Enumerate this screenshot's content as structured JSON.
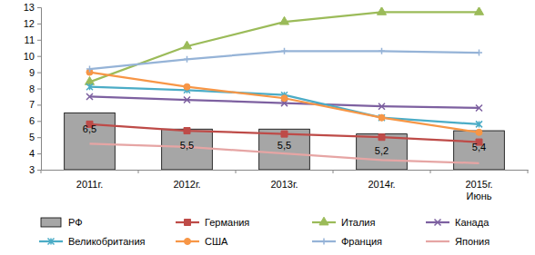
{
  "chart_data": {
    "type": "bar",
    "categories": [
      "2011г.",
      "2012г.",
      "2013г.",
      "2014г.",
      "2015г. Июнь"
    ],
    "ylim": [
      3,
      13
    ],
    "yticks": [
      3,
      4,
      5,
      6,
      7,
      8,
      9,
      10,
      11,
      12,
      13
    ],
    "grid": false,
    "legend": "bottom",
    "data_labels": true,
    "series": [
      {
        "name": "РФ",
        "type": "bar",
        "color": "#a6a6a6",
        "values": [
          6.5,
          5.5,
          5.5,
          5.2,
          5.4
        ],
        "value_labels": [
          "6,5",
          "5,5",
          "5,5",
          "5,2",
          "5,4"
        ]
      },
      {
        "name": "Германия",
        "type": "line",
        "color": "#be4b48",
        "marker": "square",
        "values": [
          5.8,
          5.4,
          5.2,
          5.0,
          4.7
        ]
      },
      {
        "name": "Италия",
        "type": "line",
        "color": "#9bbb59",
        "marker": "triangle",
        "values": [
          8.4,
          10.6,
          12.1,
          12.7,
          12.7
        ]
      },
      {
        "name": "Канада",
        "type": "line",
        "color": "#7d60a0",
        "marker": "x",
        "values": [
          7.5,
          7.3,
          7.1,
          6.9,
          6.8
        ]
      },
      {
        "name": "Великобритания",
        "type": "line",
        "color": "#4bacc6",
        "marker": "asterisk",
        "values": [
          8.1,
          7.9,
          7.6,
          6.2,
          5.8
        ]
      },
      {
        "name": "США",
        "type": "line",
        "color": "#f79646",
        "marker": "circle",
        "values": [
          9.0,
          8.1,
          7.4,
          6.2,
          5.3
        ]
      },
      {
        "name": "Франция",
        "type": "line",
        "color": "#95b3d7",
        "marker": "plus",
        "values": [
          9.2,
          9.8,
          10.3,
          10.3,
          10.2
        ]
      },
      {
        "name": "Япония",
        "type": "line",
        "color": "#e6a5a4",
        "marker": "none",
        "values": [
          4.6,
          4.4,
          4.0,
          3.6,
          3.4
        ]
      }
    ]
  }
}
